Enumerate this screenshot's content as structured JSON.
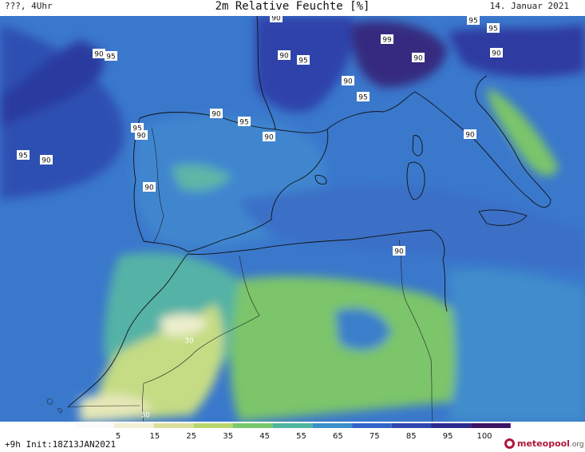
{
  "header": {
    "left": "???, 4Uhr",
    "title": "2m Relative Feuchte [%]",
    "date": "14. Januar 2021"
  },
  "footer": {
    "run_info": "+9h  Init:18Z13JAN2021",
    "brand_name": "meteopool",
    "brand_suffix": ".org"
  },
  "legend": {
    "ticks": [
      "5",
      "15",
      "25",
      "35",
      "45",
      "55",
      "65",
      "75",
      "85",
      "95",
      "100"
    ],
    "colors": [
      "#fbfbfb",
      "#f1f0d4",
      "#dcdf9c",
      "#b7d66e",
      "#79c96b",
      "#4fb59e",
      "#3b8fcb",
      "#3165c8",
      "#2f46b0",
      "#2b2a8e",
      "#3d1465"
    ]
  },
  "isolines": [
    {
      "label": "90"
    },
    {
      "label": "95"
    },
    {
      "label": "90"
    },
    {
      "label": "95"
    },
    {
      "label": "99"
    },
    {
      "label": "90"
    },
    {
      "label": "95"
    },
    {
      "label": "90"
    },
    {
      "label": "95"
    },
    {
      "label": "90"
    },
    {
      "label": "95"
    },
    {
      "label": "90"
    },
    {
      "label": "90"
    },
    {
      "label": "95"
    },
    {
      "label": "90"
    },
    {
      "label": "95"
    },
    {
      "label": "90"
    },
    {
      "label": "90"
    },
    {
      "label": "95"
    },
    {
      "label": "90"
    },
    {
      "label": "90"
    },
    {
      "label": "90"
    },
    {
      "label": "30"
    },
    {
      "label": "30"
    }
  ]
}
